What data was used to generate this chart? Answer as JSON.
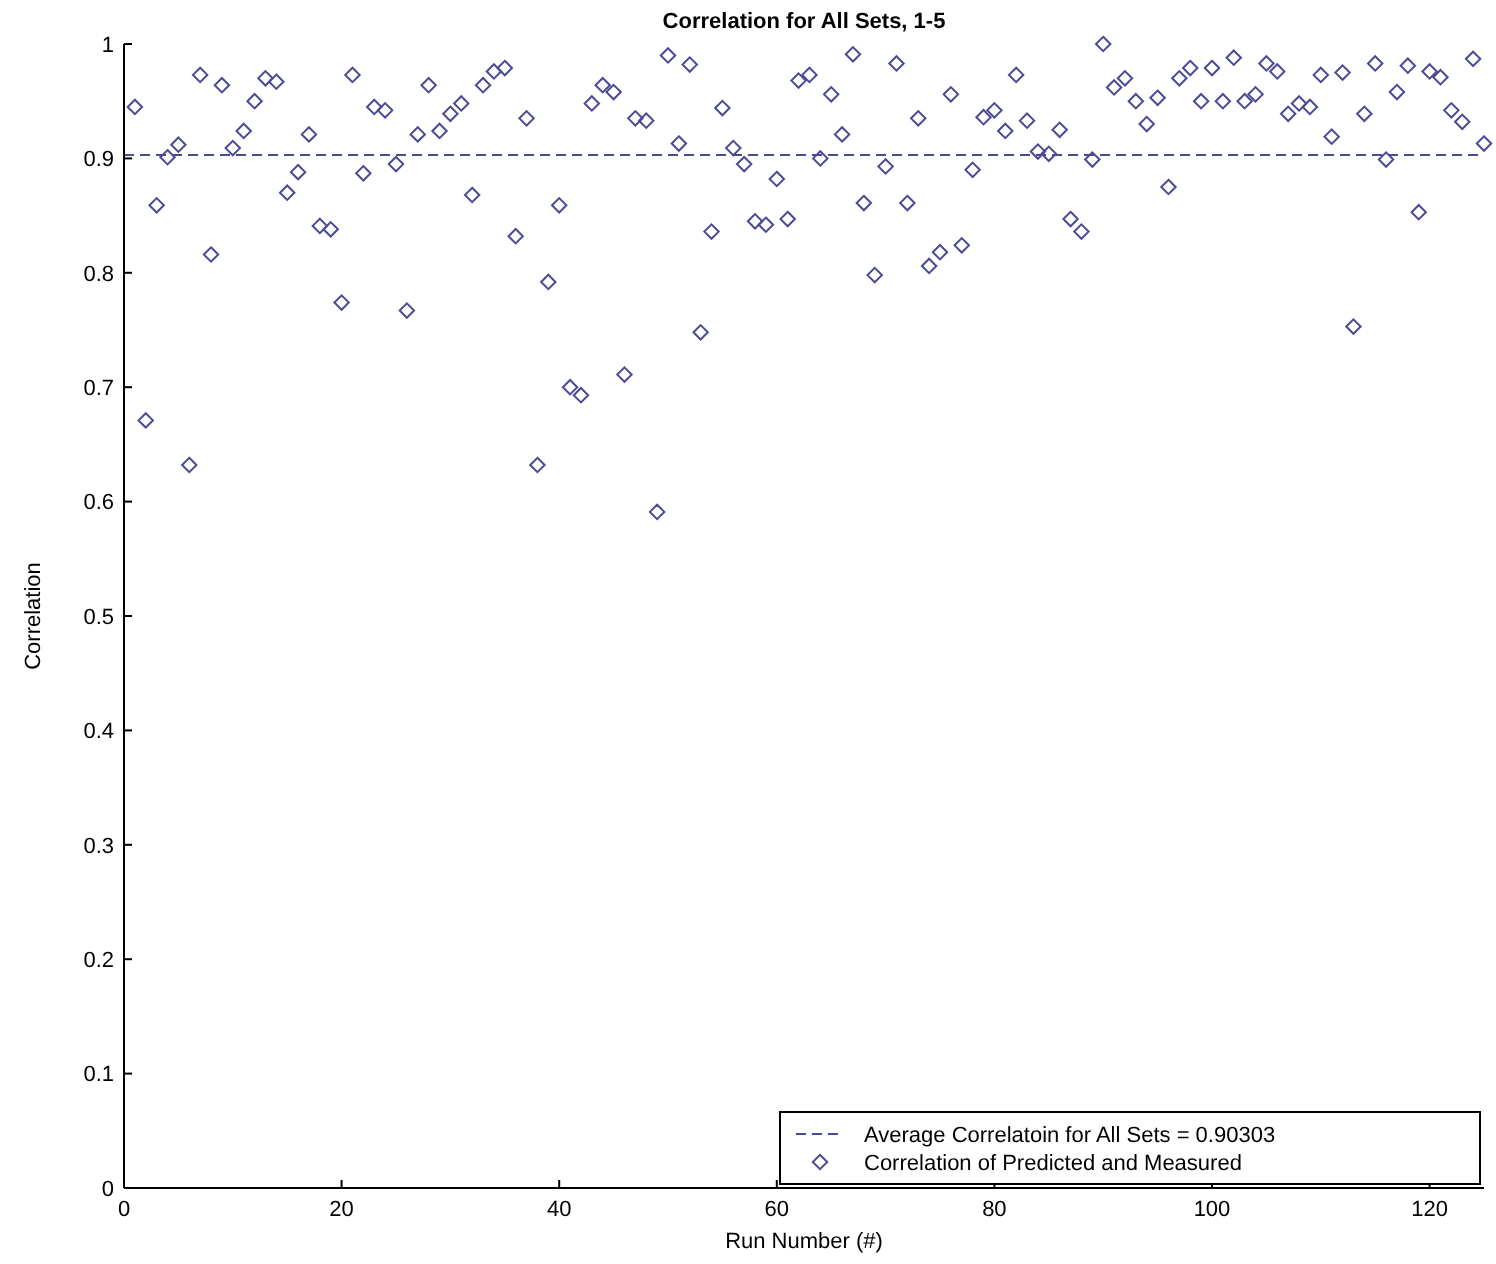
{
  "chart_data": {
    "type": "scatter",
    "title": "Correlation for All Sets, 1-5",
    "xlabel": "Run Number (#)",
    "ylabel": "Correlation",
    "x": [
      1,
      2,
      3,
      4,
      5,
      6,
      7,
      8,
      9,
      10,
      11,
      12,
      13,
      14,
      15,
      16,
      17,
      18,
      19,
      20,
      21,
      22,
      23,
      24,
      25,
      26,
      27,
      28,
      29,
      30,
      31,
      32,
      33,
      34,
      35,
      36,
      37,
      38,
      39,
      40,
      41,
      42,
      43,
      44,
      45,
      46,
      47,
      48,
      49,
      50,
      51,
      52,
      53,
      54,
      55,
      56,
      57,
      58,
      59,
      60,
      61,
      62,
      63,
      64,
      65,
      66,
      67,
      68,
      69,
      70,
      71,
      72,
      73,
      74,
      75,
      76,
      77,
      78,
      79,
      80,
      81,
      82,
      83,
      84,
      85,
      86,
      87,
      88,
      89,
      90,
      91,
      92,
      93,
      94,
      95,
      96,
      97,
      98,
      99,
      100,
      101,
      102,
      103,
      104,
      105,
      106,
      107,
      108,
      109,
      110,
      111,
      112,
      113,
      114,
      115,
      116,
      117,
      118,
      119,
      120,
      121,
      122,
      123,
      124,
      125
    ],
    "series": [
      {
        "name": "Correlation of Predicted and Measured",
        "color": "#4a4a96",
        "values": [
          0.945,
          0.671,
          0.859,
          0.901,
          0.912,
          0.632,
          0.973,
          0.816,
          0.964,
          0.909,
          0.924,
          0.95,
          0.97,
          0.967,
          0.87,
          0.888,
          0.921,
          0.841,
          0.838,
          0.774,
          0.973,
          0.887,
          0.945,
          0.942,
          0.895,
          0.767,
          0.921,
          0.964,
          0.924,
          0.939,
          0.948,
          0.868,
          0.964,
          0.976,
          0.979,
          0.832,
          0.935,
          0.632,
          0.792,
          0.859,
          0.7,
          0.693,
          0.948,
          0.964,
          0.958,
          0.711,
          0.935,
          0.933,
          0.591,
          0.99,
          0.913,
          0.982,
          0.748,
          0.836,
          0.944,
          0.909,
          0.895,
          0.845,
          0.842,
          0.882,
          0.847,
          0.968,
          0.973,
          0.9,
          0.956,
          0.921,
          0.991,
          0.861,
          0.798,
          0.893,
          0.983,
          0.861,
          0.935,
          0.806,
          0.818,
          0.956,
          0.824,
          0.89,
          0.936,
          0.942,
          0.924,
          0.973,
          0.933,
          0.906,
          0.904,
          0.925,
          0.847,
          0.836,
          0.899,
          1.0,
          0.962,
          0.97,
          0.95,
          0.93,
          0.953,
          0.875,
          0.97,
          0.979,
          0.95,
          0.979,
          0.95,
          0.988,
          0.95,
          0.956,
          0.983,
          0.976,
          0.939,
          0.948,
          0.945,
          0.973,
          0.919,
          0.975,
          0.753,
          0.939,
          0.983,
          0.899,
          0.958,
          0.981,
          0.853,
          0.976,
          0.971,
          0.942,
          0.932,
          0.987,
          0.913
        ]
      }
    ],
    "marker": "diamond",
    "xlim": [
      0,
      125
    ],
    "xticks": [
      0,
      20,
      40,
      60,
      80,
      100,
      120
    ],
    "ylim": [
      0,
      1
    ],
    "yticks": [
      0,
      0.1,
      0.2,
      0.3,
      0.4,
      0.5,
      0.6,
      0.7,
      0.8,
      0.9,
      1
    ],
    "ref_lines": [
      {
        "axis": "y",
        "value": 0.90303,
        "label": "Average Correlatoin for All Sets = 0.90303",
        "color": "#4a4a96",
        "line_style": "dashed"
      }
    ],
    "legend": "bottom right",
    "grid": false
  }
}
